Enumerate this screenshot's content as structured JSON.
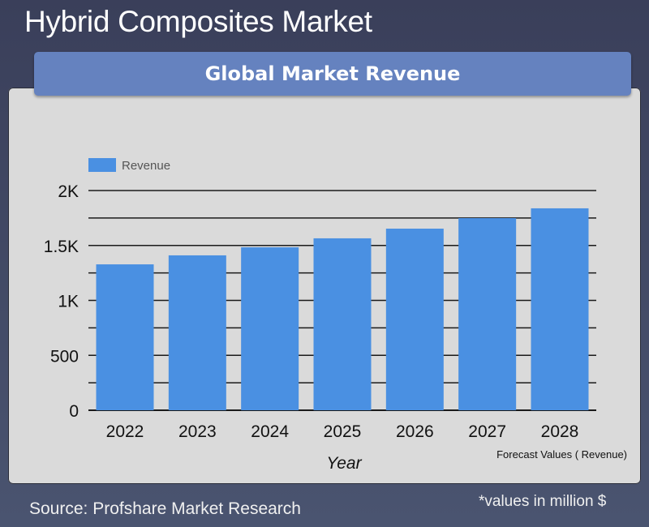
{
  "page": {
    "title": "Hybrid Composites Market",
    "banner": "Global Market Revenue",
    "source": "Source: Profshare Market Research",
    "units_note": "*values in million $",
    "forecast_note": "Forecast Values ( Revenue)"
  },
  "colors": {
    "bar": "#4a90e2",
    "banner": "#6582bf",
    "background": "#434a63",
    "panel": "#dadada"
  },
  "chart_data": {
    "type": "bar",
    "title": "Global Market Revenue",
    "xlabel": "Year",
    "ylabel": "",
    "categories": [
      "2022",
      "2023",
      "2024",
      "2025",
      "2026",
      "2027",
      "2028"
    ],
    "series": [
      {
        "name": "Revenue",
        "values": [
          1328,
          1410,
          1483,
          1565,
          1653,
          1749,
          1838
        ]
      }
    ],
    "ylim": [
      0,
      2000
    ],
    "y_gridlines": [
      0,
      250,
      500,
      750,
      1000,
      1250,
      1500,
      1750,
      2000
    ],
    "y_ticks": [
      {
        "value": 0,
        "label": "0"
      },
      {
        "value": 500,
        "label": "500"
      },
      {
        "value": 1000,
        "label": "1K"
      },
      {
        "value": 1500,
        "label": "1.5K"
      },
      {
        "value": 2000,
        "label": "2K"
      }
    ],
    "grid": true,
    "legend": {
      "position": "top-left",
      "entries": [
        "Revenue"
      ]
    },
    "units": "million $"
  }
}
